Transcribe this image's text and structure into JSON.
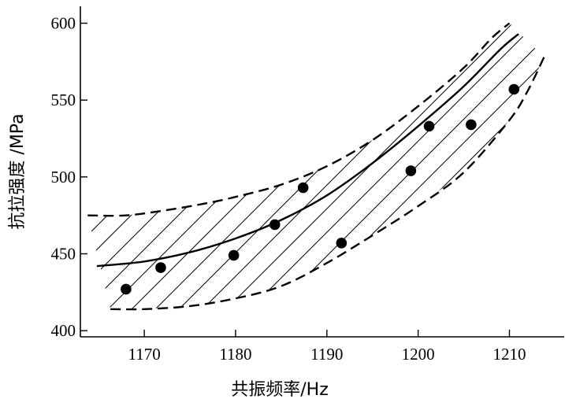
{
  "chart_data": {
    "type": "scatter",
    "xlabel": "共振频率/Hz",
    "ylabel": "抗拉强度 /MPa",
    "xlim": [
      1163,
      1216
    ],
    "ylim": [
      396,
      611
    ],
    "xticks": [
      1170,
      1180,
      1190,
      1200,
      1210
    ],
    "yticks": [
      400,
      450,
      500,
      550,
      600
    ],
    "grid": false,
    "series": [
      {
        "type": "scatter",
        "points": [
          {
            "x": 1168,
            "y": 427
          },
          {
            "x": 1171.8,
            "y": 441
          },
          {
            "x": 1179.8,
            "y": 449
          },
          {
            "x": 1184.3,
            "y": 469
          },
          {
            "x": 1187.4,
            "y": 493
          },
          {
            "x": 1191.6,
            "y": 457
          },
          {
            "x": 1199.2,
            "y": 504
          },
          {
            "x": 1201.2,
            "y": 533
          },
          {
            "x": 1205.8,
            "y": 534
          },
          {
            "x": 1210.5,
            "y": 557
          }
        ]
      },
      {
        "type": "line",
        "style": "solid",
        "points": [
          {
            "x": 1164.8,
            "y": 442
          },
          {
            "x": 1170,
            "y": 445
          },
          {
            "x": 1175,
            "y": 451
          },
          {
            "x": 1180,
            "y": 460
          },
          {
            "x": 1185,
            "y": 472
          },
          {
            "x": 1190,
            "y": 488
          },
          {
            "x": 1195,
            "y": 509
          },
          {
            "x": 1200,
            "y": 533
          },
          {
            "x": 1205,
            "y": 559
          },
          {
            "x": 1209,
            "y": 583
          },
          {
            "x": 1211,
            "y": 593
          }
        ]
      },
      {
        "type": "line",
        "style": "dashed",
        "points": [
          {
            "x": 1163.8,
            "y": 475
          },
          {
            "x": 1168,
            "y": 475
          },
          {
            "x": 1172,
            "y": 478
          },
          {
            "x": 1176,
            "y": 482
          },
          {
            "x": 1180,
            "y": 487
          },
          {
            "x": 1185,
            "y": 495
          },
          {
            "x": 1190,
            "y": 507
          },
          {
            "x": 1195,
            "y": 524
          },
          {
            "x": 1200,
            "y": 546
          },
          {
            "x": 1205,
            "y": 571
          },
          {
            "x": 1208,
            "y": 590
          },
          {
            "x": 1210,
            "y": 600
          }
        ]
      },
      {
        "type": "line",
        "style": "dashed",
        "points": [
          {
            "x": 1166.3,
            "y": 414
          },
          {
            "x": 1170,
            "y": 414
          },
          {
            "x": 1175,
            "y": 416
          },
          {
            "x": 1180,
            "y": 421
          },
          {
            "x": 1185,
            "y": 429
          },
          {
            "x": 1190,
            "y": 444
          },
          {
            "x": 1195,
            "y": 462
          },
          {
            "x": 1200,
            "y": 481
          },
          {
            "x": 1205,
            "y": 503
          },
          {
            "x": 1210,
            "y": 537
          },
          {
            "x": 1212,
            "y": 556
          },
          {
            "x": 1213.8,
            "y": 578
          }
        ]
      }
    ]
  }
}
